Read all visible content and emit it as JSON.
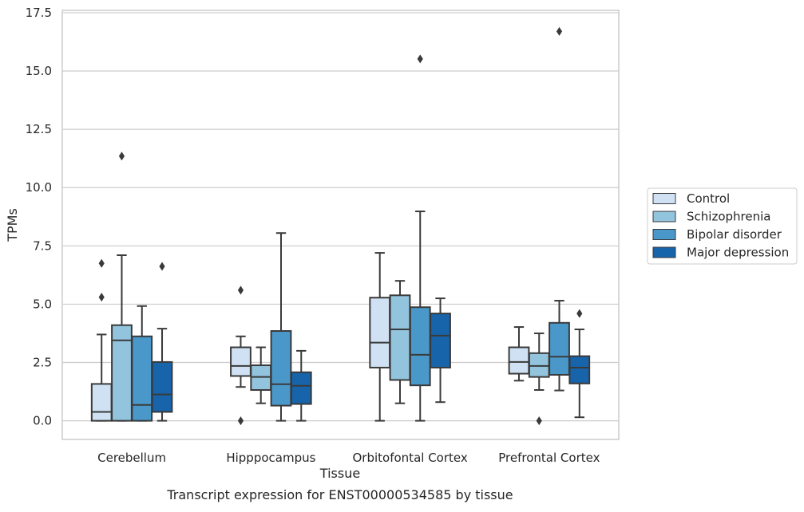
{
  "chart_data": {
    "type": "boxplot",
    "caption": "Transcript expression for ENST00000534585 by tissue",
    "xlabel": "Tissue",
    "ylabel": "TPMs",
    "ylim": [
      -0.8,
      17.6
    ],
    "yticks": [
      "0.0",
      "2.5",
      "5.0",
      "7.5",
      "10.0",
      "12.5",
      "15.0",
      "17.5"
    ],
    "grid": "horizontal",
    "legend_position": "right",
    "colors": {
      "Control": "#cfe1f2",
      "Schizophrenia": "#93c4de",
      "Bipolar disorder": "#4a98c9",
      "Major depression": "#1764ab",
      "edge": "#3a3a3a",
      "grid": "#cccccc"
    },
    "categories": [
      "Cerebellum",
      "Hipppocampus",
      "Orbitofontal Cortex",
      "Prefrontal Cortex"
    ],
    "series": [
      {
        "name": "Control",
        "boxes": [
          {
            "whislo": 0.0,
            "q1": 0.0,
            "med": 0.38,
            "q3": 1.58,
            "whishi": 3.7,
            "fliers": [
              5.3,
              6.75
            ]
          },
          {
            "whislo": 1.45,
            "q1": 1.92,
            "med": 2.35,
            "q3": 3.15,
            "whishi": 3.62,
            "fliers": [
              0.0,
              5.6
            ]
          },
          {
            "whislo": 0.0,
            "q1": 2.28,
            "med": 3.35,
            "q3": 5.28,
            "whishi": 7.2,
            "fliers": []
          },
          {
            "whislo": 1.72,
            "q1": 2.02,
            "med": 2.52,
            "q3": 3.15,
            "whishi": 4.02,
            "fliers": []
          }
        ]
      },
      {
        "name": "Schizophrenia",
        "boxes": [
          {
            "whislo": 0.0,
            "q1": 0.0,
            "med": 3.45,
            "q3": 4.1,
            "whishi": 7.1,
            "fliers": [
              11.35
            ]
          },
          {
            "whislo": 0.75,
            "q1": 1.32,
            "med": 1.88,
            "q3": 2.38,
            "whishi": 3.15,
            "fliers": []
          },
          {
            "whislo": 0.75,
            "q1": 1.75,
            "med": 3.92,
            "q3": 5.38,
            "whishi": 6.0,
            "fliers": []
          },
          {
            "whislo": 1.32,
            "q1": 1.88,
            "med": 2.35,
            "q3": 2.9,
            "whishi": 3.75,
            "fliers": [
              0.0
            ]
          }
        ]
      },
      {
        "name": "Bipolar disorder",
        "boxes": [
          {
            "whislo": 0.0,
            "q1": 0.0,
            "med": 0.68,
            "q3": 3.62,
            "whishi": 4.92,
            "fliers": []
          },
          {
            "whislo": 0.0,
            "q1": 0.65,
            "med": 1.57,
            "q3": 3.85,
            "whishi": 8.05,
            "fliers": []
          },
          {
            "whislo": 0.0,
            "q1": 1.52,
            "med": 2.83,
            "q3": 4.87,
            "whishi": 8.98,
            "fliers": [
              15.52
            ]
          },
          {
            "whislo": 1.3,
            "q1": 1.97,
            "med": 2.75,
            "q3": 4.2,
            "whishi": 5.15,
            "fliers": [
              16.7
            ]
          }
        ]
      },
      {
        "name": "Major depression",
        "boxes": [
          {
            "whislo": 0.0,
            "q1": 0.38,
            "med": 1.13,
            "q3": 2.52,
            "whishi": 3.95,
            "fliers": [
              6.62
            ]
          },
          {
            "whislo": 0.0,
            "q1": 0.72,
            "med": 1.5,
            "q3": 2.08,
            "whishi": 3.0,
            "fliers": []
          },
          {
            "whislo": 0.8,
            "q1": 2.28,
            "med": 3.65,
            "q3": 4.6,
            "whishi": 5.25,
            "fliers": []
          },
          {
            "whislo": 0.15,
            "q1": 1.6,
            "med": 2.28,
            "q3": 2.77,
            "whishi": 3.92,
            "fliers": [
              4.6
            ]
          }
        ]
      }
    ]
  }
}
